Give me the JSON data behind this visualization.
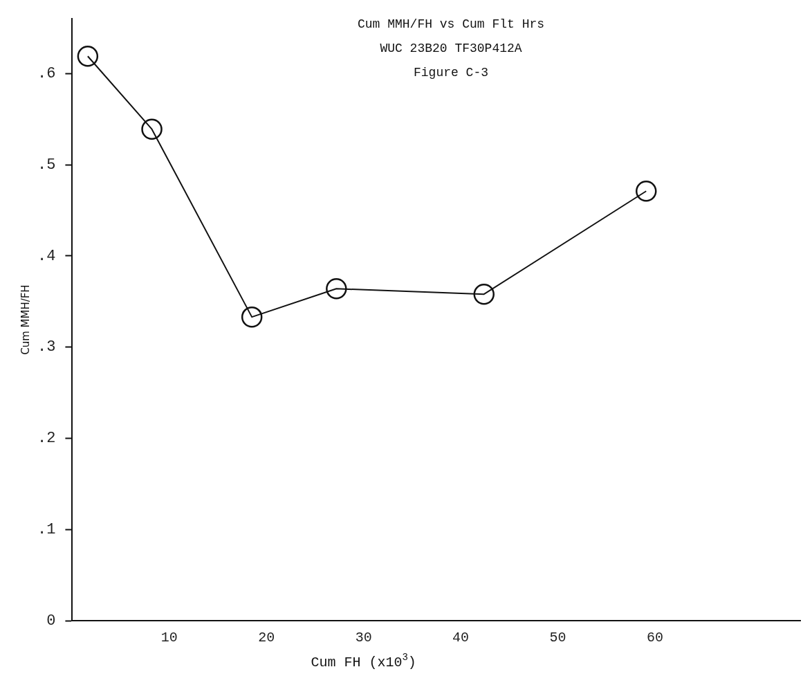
{
  "chart_data": {
    "type": "line",
    "title": "Cum MMH/FH vs Cum Flt Hrs",
    "subtitle": "WUC 23B20 TF30P412A",
    "annotations": [
      "Figure C-3"
    ],
    "xlabel": "Cum FH (x10$^{3}$)",
    "ylabel": "Cum MMH/FH",
    "x": [
      1.6,
      8.2,
      18.5,
      27.2,
      42.4,
      59.1
    ],
    "series": [
      {
        "color": "#111111",
        "values": [
          0.619,
          0.539,
          0.333,
          0.364,
          0.358,
          0.471
        ]
      }
    ],
    "xlim": [
      0,
      75
    ],
    "xticks": [
      10,
      20,
      30,
      40,
      50,
      60
    ],
    "ylim": [
      0,
      0.66
    ],
    "yticks": [
      {
        "value": 0,
        "label": "0"
      },
      {
        "value": 0.1,
        "label": ".1"
      },
      {
        "value": 0.2,
        "label": ".2"
      },
      {
        "value": 0.3,
        "label": ".3"
      },
      {
        "value": 0.4,
        "label": ".4"
      },
      {
        "value": 0.5,
        "label": ".5"
      },
      {
        "value": 0.6,
        "label": ".6"
      }
    ],
    "grid": false,
    "legend": false,
    "marker": "circle",
    "line_style": "solid"
  }
}
